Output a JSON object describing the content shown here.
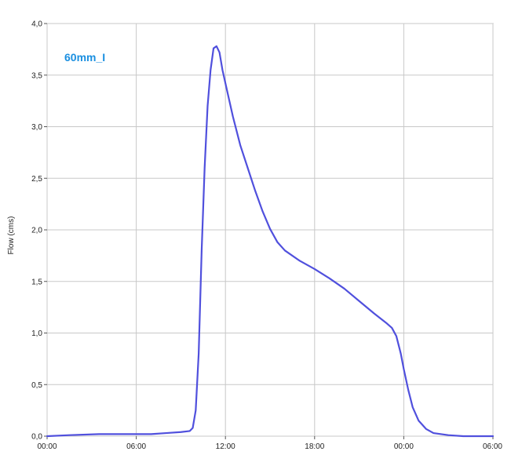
{
  "chart_data": {
    "type": "line",
    "title": "",
    "xlabel": "",
    "ylabel": "Flow (cms)",
    "ylim": [
      0,
      4
    ],
    "xlim": [
      0,
      30
    ],
    "grid": true,
    "legend": "top-left",
    "x_tick_labels": [
      "00:00",
      "06:00",
      "12:00",
      "18:00",
      "00:00",
      "06:00"
    ],
    "y_tick_labels": [
      "0,0",
      "0,5",
      "1,0",
      "1,5",
      "2,0",
      "2,5",
      "3,0",
      "3,5",
      "4,0"
    ],
    "colors": {
      "line": "#5050dd",
      "legend": "#1a8fe0",
      "grid": "#c8c8c8",
      "axis": "#555555"
    },
    "series": [
      {
        "name": "60mm_I",
        "x": [
          0,
          1.5,
          3.5,
          5,
          7,
          8,
          9,
          9.6,
          9.8,
          10,
          10.2,
          10.4,
          10.6,
          10.8,
          11,
          11.2,
          11.4,
          11.6,
          11.8,
          12,
          12.5,
          13,
          13.5,
          14,
          14.5,
          15,
          15.5,
          16,
          17,
          18,
          19,
          20,
          21,
          22,
          22.8,
          23.2,
          23.5,
          23.8,
          24,
          24.3,
          24.6,
          25,
          25.5,
          26,
          27,
          28,
          30
        ],
        "y": [
          0.0,
          0.01,
          0.02,
          0.02,
          0.02,
          0.03,
          0.04,
          0.05,
          0.08,
          0.25,
          0.8,
          1.8,
          2.6,
          3.2,
          3.55,
          3.76,
          3.78,
          3.72,
          3.55,
          3.42,
          3.1,
          2.82,
          2.6,
          2.38,
          2.18,
          2.01,
          1.88,
          1.8,
          1.7,
          1.62,
          1.53,
          1.43,
          1.31,
          1.19,
          1.1,
          1.05,
          0.97,
          0.8,
          0.65,
          0.45,
          0.28,
          0.15,
          0.07,
          0.03,
          0.01,
          0.0,
          0.0
        ]
      }
    ]
  }
}
